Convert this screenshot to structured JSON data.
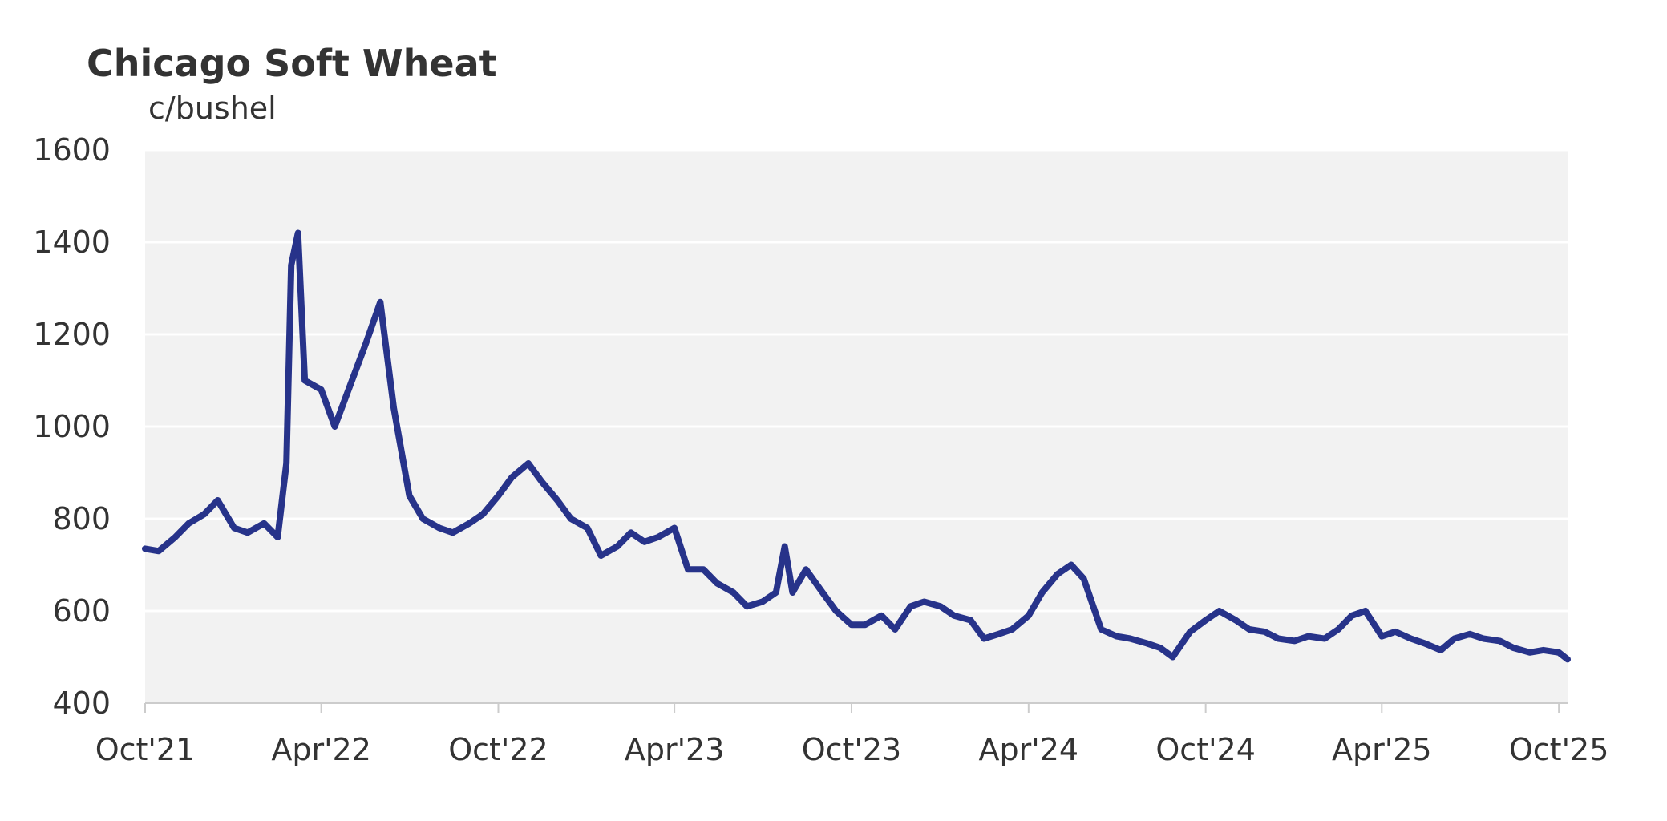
{
  "chart_data": {
    "type": "line",
    "title": "Chicago Soft Wheat",
    "unit_label": "c/bushel",
    "xlabel": "",
    "ylabel": "",
    "ylim": [
      400,
      1600
    ],
    "yticks": [
      "1600",
      "1400",
      "1200",
      "1000",
      "800",
      "600",
      "400"
    ],
    "xticks": [
      "Oct'21",
      "Apr'22",
      "Oct'22",
      "Apr'23",
      "Oct'23",
      "Apr'24",
      "Oct'24",
      "Apr'25",
      "Oct'25"
    ],
    "grid": true,
    "legend": "none",
    "colors": {
      "line": "#27338a",
      "plot_background": "#f2f2f2",
      "gridline": "#ffffff"
    },
    "series": [
      {
        "x": [
          "2021-10-01",
          "2021-10-15",
          "2021-11-01",
          "2021-11-15",
          "2021-12-01",
          "2021-12-15",
          "2022-01-01",
          "2022-01-15",
          "2022-02-01",
          "2022-02-15",
          "2022-02-24",
          "2022-03-01",
          "2022-03-08",
          "2022-03-15",
          "2022-04-01",
          "2022-04-15",
          "2022-05-01",
          "2022-05-17",
          "2022-06-01",
          "2022-06-15",
          "2022-07-01",
          "2022-07-15",
          "2022-08-01",
          "2022-08-15",
          "2022-09-01",
          "2022-09-15",
          "2022-10-01",
          "2022-10-15",
          "2022-11-01",
          "2022-11-15",
          "2022-12-01",
          "2022-12-15",
          "2023-01-01",
          "2023-01-15",
          "2023-02-01",
          "2023-02-15",
          "2023-03-01",
          "2023-03-15",
          "2023-04-01",
          "2023-04-15",
          "2023-05-01",
          "2023-05-15",
          "2023-06-01",
          "2023-06-15",
          "2023-07-01",
          "2023-07-15",
          "2023-07-24",
          "2023-08-01",
          "2023-08-15",
          "2023-09-01",
          "2023-09-15",
          "2023-10-01",
          "2023-10-15",
          "2023-11-01",
          "2023-11-15",
          "2023-12-01",
          "2023-12-15",
          "2024-01-01",
          "2024-01-15",
          "2024-02-01",
          "2024-02-15",
          "2024-03-01",
          "2024-03-15",
          "2024-04-01",
          "2024-04-15",
          "2024-05-01",
          "2024-05-15",
          "2024-05-28",
          "2024-06-15",
          "2024-07-01",
          "2024-07-15",
          "2024-08-01",
          "2024-08-15",
          "2024-08-28",
          "2024-09-15",
          "2024-10-01",
          "2024-10-15",
          "2024-11-01",
          "2024-11-15",
          "2024-12-01",
          "2024-12-15",
          "2025-01-01",
          "2025-01-15",
          "2025-02-01",
          "2025-02-15",
          "2025-03-01",
          "2025-03-15",
          "2025-04-01",
          "2025-04-15",
          "2025-05-01",
          "2025-05-15",
          "2025-06-01",
          "2025-06-15",
          "2025-07-01",
          "2025-07-15",
          "2025-08-01",
          "2025-08-15",
          "2025-09-01",
          "2025-09-15",
          "2025-10-01",
          "2025-10-10"
        ],
        "values": [
          735,
          730,
          760,
          790,
          810,
          840,
          780,
          770,
          790,
          760,
          920,
          1350,
          1420,
          1100,
          1080,
          1000,
          1090,
          1180,
          1270,
          1040,
          850,
          800,
          780,
          770,
          790,
          810,
          850,
          890,
          920,
          880,
          840,
          800,
          780,
          720,
          740,
          770,
          750,
          760,
          780,
          690,
          690,
          660,
          640,
          610,
          620,
          640,
          740,
          640,
          690,
          640,
          600,
          570,
          570,
          590,
          560,
          610,
          620,
          610,
          590,
          580,
          540,
          550,
          560,
          590,
          640,
          680,
          700,
          670,
          560,
          545,
          540,
          530,
          520,
          500,
          555,
          580,
          600,
          580,
          560,
          555,
          540,
          535,
          545,
          540,
          560,
          590,
          600,
          545,
          555,
          540,
          530,
          515,
          540,
          550,
          540,
          535,
          520,
          510,
          515,
          510,
          495
        ]
      }
    ]
  }
}
